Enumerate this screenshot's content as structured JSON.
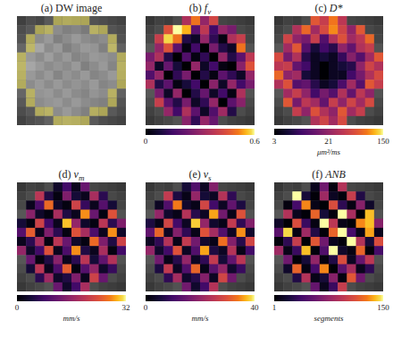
{
  "chart_data": [
    {
      "type": "image",
      "label": "(a)",
      "title": "DW image",
      "tick_labels": false,
      "cells": [
        [
          0.25,
          0.3,
          0.28,
          0.35,
          0.4,
          0.45,
          0.42,
          0.4,
          0.32,
          0.3,
          0.28,
          0.26
        ],
        [
          0.3,
          0.35,
          0.4,
          0.5,
          0.55,
          0.5,
          0.52,
          0.48,
          0.5,
          0.42,
          0.33,
          0.3
        ],
        [
          0.33,
          0.45,
          0.55,
          0.6,
          0.5,
          0.55,
          0.6,
          0.55,
          0.52,
          0.55,
          0.45,
          0.32
        ],
        [
          0.4,
          0.55,
          0.65,
          0.55,
          0.6,
          0.5,
          0.55,
          0.6,
          0.58,
          0.5,
          0.55,
          0.38
        ],
        [
          0.5,
          0.6,
          0.55,
          0.62,
          0.55,
          0.6,
          0.52,
          0.55,
          0.6,
          0.58,
          0.55,
          0.45
        ],
        [
          0.55,
          0.65,
          0.6,
          0.55,
          0.58,
          0.55,
          0.6,
          0.5,
          0.55,
          0.6,
          0.52,
          0.5
        ],
        [
          0.5,
          0.6,
          0.55,
          0.6,
          0.52,
          0.58,
          0.55,
          0.6,
          0.52,
          0.55,
          0.6,
          0.48
        ],
        [
          0.45,
          0.55,
          0.6,
          0.55,
          0.6,
          0.55,
          0.58,
          0.55,
          0.6,
          0.52,
          0.55,
          0.42
        ],
        [
          0.4,
          0.5,
          0.58,
          0.6,
          0.55,
          0.6,
          0.55,
          0.52,
          0.58,
          0.55,
          0.5,
          0.38
        ],
        [
          0.35,
          0.45,
          0.55,
          0.58,
          0.6,
          0.55,
          0.6,
          0.55,
          0.52,
          0.5,
          0.42,
          0.33
        ],
        [
          0.3,
          0.35,
          0.45,
          0.52,
          0.55,
          0.6,
          0.55,
          0.5,
          0.48,
          0.4,
          0.35,
          0.3
        ],
        [
          0.26,
          0.3,
          0.33,
          0.38,
          0.45,
          0.5,
          0.48,
          0.42,
          0.35,
          0.3,
          0.28,
          0.26
        ]
      ]
    },
    {
      "type": "heatmap",
      "label": "(b)",
      "title": "f",
      "title_sub": "v",
      "tick_labels": false,
      "colorbar_range": [
        0,
        0.6
      ],
      "colorbar_ticks": [
        0,
        0.6
      ],
      "cells": [
        [
          null,
          null,
          null,
          null,
          0.35,
          0.5,
          0.3,
          0.42,
          null,
          null,
          null,
          null
        ],
        [
          null,
          null,
          0.45,
          0.6,
          0.55,
          0.2,
          0.38,
          0.15,
          0.3,
          0.25,
          null,
          null
        ],
        [
          null,
          0.4,
          0.58,
          0.5,
          0.1,
          0.05,
          0.3,
          0.12,
          0.02,
          0.35,
          0.4,
          null
        ],
        [
          null,
          0.3,
          0.45,
          0.2,
          0.02,
          0.15,
          0.0,
          0.25,
          0.1,
          0.05,
          0.5,
          null
        ],
        [
          0.25,
          0.35,
          0.1,
          0.0,
          0.18,
          0.02,
          0.12,
          0.0,
          0.3,
          0.1,
          0.2,
          0.38
        ],
        [
          0.3,
          0.05,
          0.22,
          0.08,
          0.0,
          0.3,
          0.05,
          0.15,
          0.02,
          0.0,
          0.28,
          0.45
        ],
        [
          0.18,
          0.3,
          0.0,
          0.12,
          0.25,
          0.0,
          0.1,
          0.02,
          0.2,
          0.12,
          0.05,
          0.3
        ],
        [
          0.35,
          0.1,
          0.2,
          0.02,
          0.08,
          0.15,
          0.0,
          0.28,
          0.05,
          0.3,
          0.15,
          0.25
        ],
        [
          null,
          0.25,
          0.05,
          0.3,
          0.0,
          0.1,
          0.22,
          0.05,
          0.15,
          0.02,
          0.35,
          null
        ],
        [
          null,
          0.4,
          0.2,
          0.1,
          0.25,
          0.05,
          0.12,
          0.3,
          0.0,
          0.2,
          0.28,
          null
        ],
        [
          null,
          null,
          0.3,
          0.15,
          0.35,
          0.2,
          0.05,
          0.18,
          0.32,
          0.1,
          null,
          null
        ],
        [
          null,
          null,
          null,
          null,
          0.28,
          0.12,
          0.3,
          0.22,
          null,
          null,
          null,
          null
        ]
      ]
    },
    {
      "type": "heatmap",
      "label": "(c)",
      "title": "D*",
      "tick_labels": false,
      "log": true,
      "colorbar_range": [
        3,
        150
      ],
      "colorbar_ticks": [
        3,
        21,
        150
      ],
      "colorbar_label": "μm²/ms",
      "cells": [
        [
          null,
          null,
          null,
          null,
          60,
          40,
          80,
          35,
          null,
          null,
          null,
          null
        ],
        [
          null,
          null,
          30,
          70,
          25,
          50,
          90,
          45,
          20,
          60,
          null,
          null
        ],
        [
          null,
          45,
          20,
          15,
          40,
          10,
          30,
          55,
          25,
          35,
          70,
          null
        ],
        [
          null,
          25,
          60,
          10,
          5,
          8,
          6,
          20,
          12,
          30,
          40,
          null
        ],
        [
          50,
          15,
          30,
          6,
          4,
          5,
          4,
          7,
          18,
          10,
          25,
          60
        ],
        [
          35,
          40,
          12,
          8,
          4,
          3,
          4,
          5,
          6,
          20,
          45,
          30
        ],
        [
          70,
          20,
          25,
          5,
          4,
          3,
          4,
          4,
          8,
          15,
          30,
          50
        ],
        [
          30,
          55,
          10,
          12,
          6,
          4,
          5,
          9,
          25,
          10,
          60,
          40
        ],
        [
          null,
          25,
          40,
          20,
          8,
          15,
          10,
          30,
          12,
          35,
          20,
          null
        ],
        [
          null,
          60,
          15,
          35,
          25,
          12,
          40,
          20,
          45,
          25,
          50,
          null
        ],
        [
          null,
          null,
          40,
          20,
          55,
          30,
          20,
          60,
          25,
          40,
          null,
          null
        ],
        [
          null,
          null,
          null,
          null,
          30,
          45,
          25,
          50,
          null,
          null,
          null,
          null
        ]
      ]
    },
    {
      "type": "heatmap",
      "label": "(d)",
      "title": "v",
      "title_sub": "m",
      "tick_labels": false,
      "colorbar_range": [
        0,
        32
      ],
      "colorbar_ticks": [
        0,
        32
      ],
      "colorbar_label": "mm/s",
      "cells": [
        [
          null,
          null,
          null,
          null,
          3,
          8,
          2,
          12,
          null,
          null,
          null,
          null
        ],
        [
          null,
          null,
          20,
          5,
          1,
          14,
          4,
          2,
          18,
          6,
          null,
          null
        ],
        [
          null,
          2,
          9,
          26,
          3,
          1,
          22,
          7,
          2,
          10,
          4,
          null
        ],
        [
          null,
          15,
          3,
          1,
          18,
          5,
          2,
          28,
          12,
          1,
          24,
          null
        ],
        [
          4,
          1,
          22,
          8,
          2,
          30,
          16,
          3,
          1,
          20,
          6,
          14
        ],
        [
          10,
          25,
          2,
          14,
          6,
          1,
          24,
          18,
          9,
          2,
          28,
          3
        ],
        [
          2,
          6,
          18,
          1,
          20,
          12,
          3,
          1,
          26,
          14,
          5,
          22
        ],
        [
          16,
          3,
          8,
          24,
          2,
          9,
          28,
          5,
          2,
          18,
          1,
          8
        ],
        [
          null,
          12,
          1,
          5,
          15,
          2,
          6,
          20,
          4,
          11,
          19,
          null
        ],
        [
          null,
          4,
          20,
          2,
          9,
          25,
          1,
          10,
          16,
          3,
          7,
          null
        ],
        [
          null,
          null,
          6,
          17,
          3,
          5,
          14,
          2,
          22,
          12,
          null,
          null
        ],
        [
          null,
          null,
          null,
          null,
          12,
          3,
          8,
          18,
          null,
          null,
          null,
          null
        ]
      ]
    },
    {
      "type": "heatmap",
      "label": "(e)",
      "title": "v",
      "title_sub": "s",
      "tick_labels": false,
      "colorbar_range": [
        0,
        40
      ],
      "colorbar_ticks": [
        0,
        40
      ],
      "colorbar_label": "mm/s",
      "cells": [
        [
          null,
          null,
          null,
          null,
          5,
          12,
          3,
          18,
          null,
          null,
          null,
          null
        ],
        [
          null,
          null,
          26,
          6,
          2,
          20,
          5,
          3,
          24,
          8,
          null,
          null
        ],
        [
          null,
          3,
          12,
          34,
          4,
          2,
          28,
          10,
          3,
          14,
          6,
          null
        ],
        [
          null,
          20,
          4,
          2,
          24,
          7,
          3,
          36,
          16,
          2,
          30,
          null
        ],
        [
          6,
          2,
          28,
          10,
          3,
          38,
          20,
          4,
          2,
          26,
          8,
          18
        ],
        [
          14,
          32,
          3,
          18,
          8,
          2,
          30,
          22,
          12,
          3,
          35,
          4
        ],
        [
          3,
          8,
          24,
          2,
          26,
          16,
          4,
          2,
          33,
          18,
          7,
          28
        ],
        [
          20,
          4,
          10,
          30,
          3,
          12,
          36,
          6,
          3,
          24,
          2,
          10
        ],
        [
          null,
          16,
          2,
          7,
          20,
          3,
          8,
          26,
          5,
          14,
          25,
          null
        ],
        [
          null,
          6,
          26,
          3,
          12,
          32,
          2,
          13,
          20,
          4,
          9,
          null
        ],
        [
          null,
          null,
          8,
          22,
          4,
          7,
          18,
          3,
          28,
          16,
          null,
          null
        ],
        [
          null,
          null,
          null,
          null,
          16,
          4,
          10,
          24,
          null,
          null,
          null,
          null
        ]
      ]
    },
    {
      "type": "heatmap",
      "label": "(f)",
      "title": "ANB",
      "tick_labels": false,
      "colorbar_range": [
        1,
        150
      ],
      "colorbar_ticks": [
        1,
        150
      ],
      "colorbar_label": "segments",
      "cells": [
        [
          null,
          null,
          null,
          null,
          10,
          60,
          5,
          90,
          null,
          null,
          null,
          null
        ],
        [
          null,
          null,
          150,
          20,
          3,
          80,
          12,
          4,
          100,
          25,
          null,
          null
        ],
        [
          null,
          5,
          40,
          130,
          8,
          2,
          110,
          30,
          6,
          70,
          15,
          null
        ],
        [
          null,
          90,
          10,
          3,
          120,
          20,
          4,
          150,
          85,
          2,
          140,
          null
        ],
        [
          15,
          2,
          110,
          35,
          6,
          150,
          95,
          8,
          3,
          130,
          140,
          70
        ],
        [
          50,
          145,
          6,
          80,
          25,
          3,
          120,
          150,
          40,
          8,
          135,
          10
        ],
        [
          4,
          30,
          100,
          2,
          115,
          60,
          10,
          4,
          150,
          90,
          20,
          110
        ],
        [
          80,
          8,
          35,
          140,
          4,
          45,
          150,
          15,
          6,
          120,
          3,
          40
        ],
        [
          null,
          60,
          3,
          20,
          75,
          5,
          25,
          110,
          12,
          55,
          95,
          null
        ],
        [
          null,
          15,
          120,
          6,
          40,
          130,
          2,
          50,
          85,
          10,
          30,
          null
        ],
        [
          null,
          null,
          25,
          90,
          8,
          20,
          70,
          5,
          115,
          60,
          null,
          null
        ],
        [
          null,
          null,
          null,
          null,
          55,
          10,
          35,
          100,
          null,
          null,
          null,
          null
        ]
      ]
    }
  ]
}
